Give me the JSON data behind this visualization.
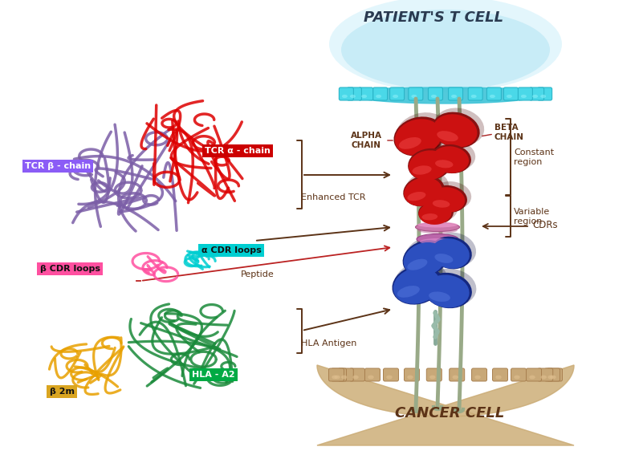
{
  "bg_color": "#ffffff",
  "colors": {
    "tcr_beta_chain": "#7B5EA7",
    "tcr_alpha_chain": "#DD0000",
    "alpha_cdr_loops": "#00CED1",
    "beta_cdr_loops": "#FF50A0",
    "hla_a2": "#1A8A3A",
    "beta2m": "#E8A000",
    "tcr_beta_label_bg": "#8B5CF6",
    "tcr_alpha_label_bg": "#CC0000",
    "alpha_cdr_label_bg": "#00CED1",
    "beta_cdr_label_bg": "#FF50A0",
    "hla_a2_label_bg": "#00AA44",
    "beta2m_label_bg": "#DAA520",
    "red_protein": "#CC1111",
    "blue_protein": "#2244AA",
    "pink_linker": "#DD88BB",
    "arrow_color": "#5C3317",
    "text_color": "#5C3317",
    "t_cell_blue": "#87CEEB",
    "cancer_cell_tan": "#C8A882",
    "stem_color": "#99BBAA"
  },
  "labels": {
    "tcr_beta": "TCR β - chain",
    "tcr_alpha": "TCR α - chain",
    "alpha_cdr": "α CDR loops",
    "beta_cdr": "β CDR loops",
    "hla_a2": "HLA - A2",
    "beta2m": "β 2m",
    "alpha_chain": "ALPHA\nCHAIN",
    "beta_chain": "BETA\nCHAIN",
    "constant_region": "Constant\nregion",
    "variable_region": "Variable\nregion",
    "cdrs": "CDRs",
    "enhanced_tcr": "Enhanced TCR",
    "peptide": "Peptide",
    "hla_antigen": "HLA Antigen",
    "patients_t_cell": "PATIENT'S T CELL",
    "cancer_cell": "CANCER CELL"
  },
  "figsize": [
    8.01,
    5.67
  ],
  "dpi": 100
}
